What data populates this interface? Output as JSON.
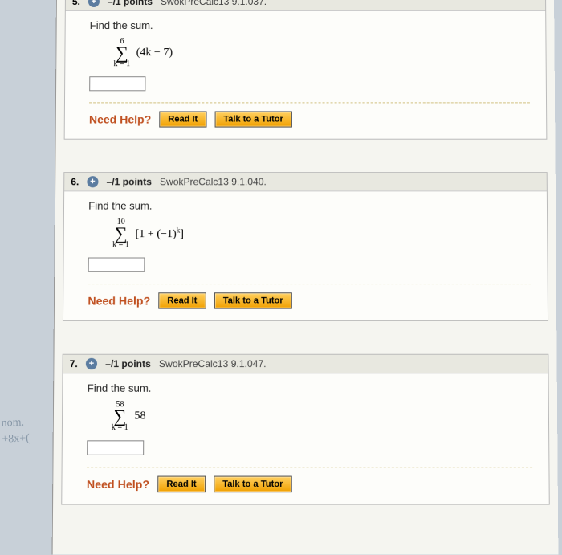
{
  "questions": [
    {
      "num": "5.",
      "points": "–/1 points",
      "source": "SwokPreCalc13 9.1.037.",
      "prompt": "Find the sum.",
      "sum_top": "6",
      "sum_bot": "k = 1",
      "expr": "(4k − 7)",
      "need_help": "Need Help?",
      "read": "Read It",
      "tutor": "Talk to a Tutor"
    },
    {
      "num": "6.",
      "points": "–/1 points",
      "source": "SwokPreCalc13 9.1.040.",
      "prompt": "Find the sum.",
      "sum_top": "10",
      "sum_bot": "k = 1",
      "expr_pre": "[1 + (−1)",
      "expr_sup": "k",
      "expr_post": "]",
      "need_help": "Need Help?",
      "read": "Read It",
      "tutor": "Talk to a Tutor"
    },
    {
      "num": "7.",
      "points": "–/1 points",
      "source": "SwokPreCalc13 9.1.047.",
      "prompt": "Find the sum.",
      "sum_top": "58",
      "sum_bot": "k = 1",
      "expr": "58",
      "need_help": "Need Help?",
      "read": "Read It",
      "tutor": "Talk to a Tutor"
    }
  ],
  "scrawl": {
    "line1": "nom.",
    "line2": "+8x+("
  }
}
